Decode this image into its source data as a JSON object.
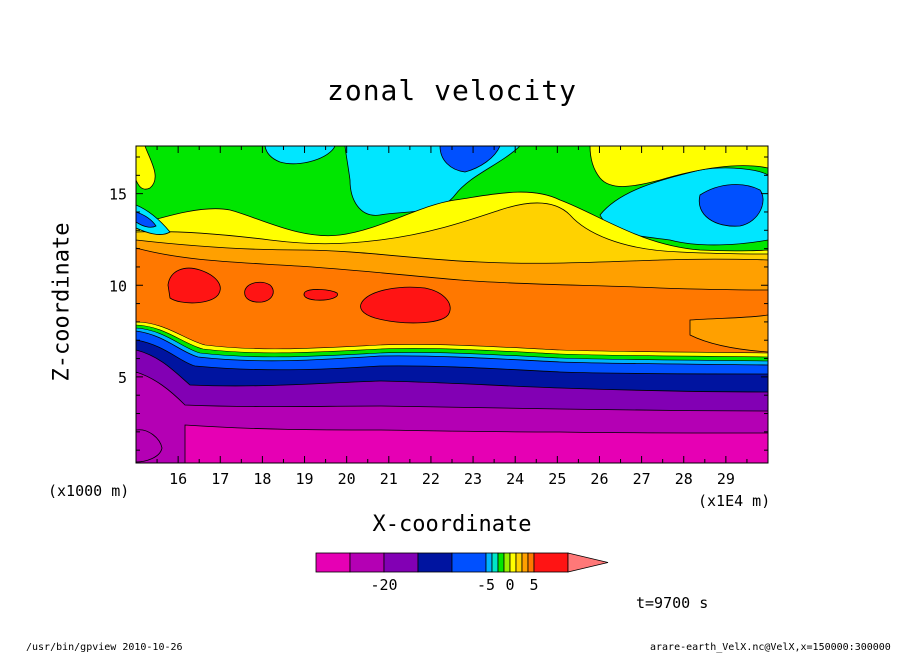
{
  "chart_data": {
    "type": "heatmap",
    "title": "zonal velocity",
    "xlabel": "X-coordinate",
    "ylabel": "Z-coordinate",
    "x_unit_label": "(x1E4 m)",
    "y_unit_label": "(x1000 m)",
    "xlim": [
      15.0,
      30.0
    ],
    "ylim": [
      0.3,
      17.6
    ],
    "x_ticks": [
      "16",
      "17",
      "18",
      "19",
      "20",
      "21",
      "22",
      "23",
      "24",
      "25",
      "26",
      "27",
      "28",
      "29"
    ],
    "y_ticks": [
      "5",
      "10",
      "15"
    ],
    "colorbar": {
      "levels": [
        -30,
        -25,
        -20,
        -15,
        -10,
        -5,
        -3,
        -2,
        -1,
        0,
        1,
        2,
        3,
        5,
        10,
        15
      ],
      "labels": [
        "-20",
        "-5",
        "0",
        "5"
      ],
      "colors": [
        "#e600b4",
        "#b400b4",
        "#8200b4",
        "#0014a0",
        "#0050ff",
        "#00b4ff",
        "#00e6c8",
        "#00e600",
        "#96f000",
        "#ffff00",
        "#ffd200",
        "#ffa000",
        "#ff7800",
        "#ff1414",
        "#ff7878"
      ]
    },
    "time_label": "t=9700 s",
    "footer_left": "/usr/bin/gpview   2010-10-26",
    "footer_right": "arare-earth_VelX.nc@VelX,x=150000:300000"
  }
}
